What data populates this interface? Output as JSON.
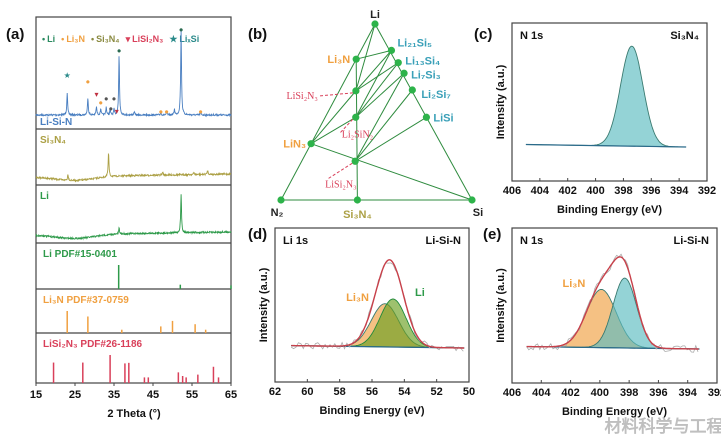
{
  "colors": {
    "li_si_n": "#4a7fc1",
    "si3n4": "#aca045",
    "li": "#2e9a4a",
    "li3n": "#f0a040",
    "lisi2n3": "#d9405a",
    "lisi_phase": "#3aa0b8",
    "tie_line": "#2e8b3e",
    "node": "#2db34a",
    "xps_teal": "#5bbcc0",
    "xps_envelope": "#c8404a",
    "xps_green": "#6aa020"
  },
  "chart_data": [
    {
      "panel": "(a)",
      "type": "line",
      "xlabel": "2 Theta (°)",
      "xlim": [
        15,
        65
      ],
      "xticks": [
        "15",
        "25",
        "35",
        "45",
        "55",
        "65"
      ],
      "legend": [
        {
          "symbol": "•",
          "label": "Li",
          "color": "#2a8a60"
        },
        {
          "symbol": "•",
          "label": "Li₃N",
          "color": "#f0a040"
        },
        {
          "symbol": "•",
          "label": "Si₃N₄",
          "color": "#8a8a40"
        },
        {
          "symbol": "▾",
          "label": "LiSi₂N₃",
          "color": "#d9405a"
        },
        {
          "symbol": "★",
          "label": "LiₓSi",
          "color": "#2a8a8a"
        }
      ],
      "experimental": [
        {
          "name": "Li-Si-N",
          "peaks": [
            [
              23.0,
              28
            ],
            [
              28.3,
              22
            ],
            [
              30.5,
              10
            ],
            [
              31.6,
              8
            ],
            [
              33.0,
              10
            ],
            [
              34.0,
              6
            ],
            [
              35.0,
              7
            ],
            [
              36.3,
              75
            ],
            [
              40.2,
              4
            ],
            [
              47.0,
              3
            ],
            [
              48.5,
              3
            ],
            [
              50.5,
              7
            ],
            [
              52.2,
              105
            ],
            [
              57.2,
              3
            ]
          ]
        },
        {
          "name": "Si₃N₄",
          "peaks": [
            [
              23.2,
              6
            ],
            [
              33.6,
              24
            ],
            [
              47.5,
              3
            ],
            [
              55.5,
              2
            ],
            [
              59.0,
              4
            ]
          ]
        },
        {
          "name": "Li",
          "peaks": [
            [
              36.3,
              5
            ],
            [
              52.2,
              32
            ]
          ]
        }
      ],
      "markers": [
        {
          "symbol": "★",
          "phase": "LiₓSi",
          "x": 23.0
        },
        {
          "symbol": "•",
          "phase": "Li₃N",
          "x": 28.3
        },
        {
          "symbol": "▾",
          "phase": "LiSi₂N₃",
          "x": 30.5
        },
        {
          "symbol": "•",
          "phase": "Li₃N",
          "x": 31.6
        },
        {
          "symbol": "•",
          "phase": "Si₃N₄",
          "x": 33.0
        },
        {
          "symbol": "•",
          "phase": "Si₃N₄",
          "x": 34.2
        },
        {
          "symbol": "•",
          "phase": "Si₃N₄",
          "x": 35.0
        },
        {
          "symbol": "▾",
          "phase": "LiSi₂N₃",
          "x": 35.7
        },
        {
          "symbol": "•",
          "phase": "Li",
          "x": 36.3
        },
        {
          "symbol": "•",
          "phase": "Li₃N",
          "x": 47.0
        },
        {
          "symbol": "•",
          "phase": "Li₃N",
          "x": 48.5
        },
        {
          "symbol": "•",
          "phase": "Li",
          "x": 52.2
        },
        {
          "symbol": "•",
          "phase": "Li₃N",
          "x": 57.2
        }
      ],
      "references": [
        {
          "name": "Li  PDF#15-0401",
          "peaks": [
            [
              36.2,
              100
            ],
            [
              52.0,
              18
            ],
            [
              65.0,
              15
            ]
          ]
        },
        {
          "name": "Li₃N  PDF#37-0759",
          "peaks": [
            [
              23.0,
              100
            ],
            [
              28.3,
              75
            ],
            [
              37.0,
              15
            ],
            [
              47.0,
              30
            ],
            [
              50.0,
              55
            ],
            [
              55.8,
              40
            ],
            [
              58.5,
              15
            ]
          ]
        },
        {
          "name": "LiSi₂N₃  PDF#26-1186",
          "peaks": [
            [
              19.5,
              73
            ],
            [
              27.0,
              73
            ],
            [
              34.0,
              100
            ],
            [
              37.8,
              70
            ],
            [
              38.8,
              72
            ],
            [
              42.8,
              20
            ],
            [
              43.8,
              20
            ],
            [
              51.5,
              38
            ],
            [
              52.6,
              25
            ],
            [
              53.5,
              20
            ],
            [
              56.5,
              30
            ],
            [
              60.5,
              58
            ],
            [
              61.8,
              20
            ]
          ]
        }
      ]
    },
    {
      "panel": "(b)",
      "type": "ternary",
      "vertices": {
        "top": "Li",
        "left": "N₂",
        "right": "Si"
      },
      "points": [
        {
          "id": "Li",
          "label": "Li",
          "li": 1.0,
          "si": 0.0,
          "color": "#222"
        },
        {
          "id": "N2",
          "label": "N₂",
          "li": 0.0,
          "si": 0.0,
          "color": "#222"
        },
        {
          "id": "Si",
          "label": "Si",
          "li": 0.0,
          "si": 1.0,
          "color": "#222"
        },
        {
          "id": "Li3N",
          "label": "Li₃N",
          "li": 0.8,
          "si": 0.0,
          "color": "#f0a040"
        },
        {
          "id": "LiSi2N3a",
          "label": "LiSi₂N₃",
          "li": 0.62,
          "si": 0.087,
          "color": "#d9405a"
        },
        {
          "id": "Li2SiN2",
          "label": "Li₂SiN₂",
          "li": 0.47,
          "si": 0.16,
          "color": "#d9405a"
        },
        {
          "id": "LiN3",
          "label": "LiN₃",
          "li": 0.32,
          "si": 0.0,
          "color": "#f0a040"
        },
        {
          "id": "LiSi2N3b",
          "label": "LiSi₂N₃",
          "li": 0.22,
          "si": 0.28,
          "color": "#d9405a"
        },
        {
          "id": "Si3N4",
          "label": "Si₃N₄",
          "li": 0.0,
          "si": 0.4,
          "color": "#aca045"
        },
        {
          "id": "Li21Si5",
          "label": "Li₂₁Si₅",
          "li": 0.85,
          "si": 0.16,
          "color": "#3aa0b8"
        },
        {
          "id": "Li13Si4",
          "label": "Li₁₃Si₄",
          "li": 0.78,
          "si": 0.23,
          "color": "#3aa0b8"
        },
        {
          "id": "Li7Si3",
          "label": "Li₇Si₃",
          "li": 0.72,
          "si": 0.29,
          "color": "#3aa0b8"
        },
        {
          "id": "Li2Si7",
          "label": "Li₂Si₇",
          "li": 0.625,
          "si": 0.38,
          "color": "#3aa0b8"
        },
        {
          "id": "LiSi",
          "label": "LiSi",
          "li": 0.47,
          "si": 0.53,
          "color": "#3aa0b8"
        }
      ],
      "tie_lines": [
        [
          "Li",
          "N2"
        ],
        [
          "N2",
          "Si"
        ],
        [
          "Si",
          "Li"
        ],
        [
          "Li3N",
          "Si3N4"
        ],
        [
          "Li",
          "LiSi2N3a"
        ],
        [
          "Li3N",
          "Li21Si5"
        ],
        [
          "LiSi2N3a",
          "Li21Si5"
        ],
        [
          "LiSi2N3a",
          "Li13Si4"
        ],
        [
          "Li2SiN2",
          "Li21Si5"
        ],
        [
          "Li2SiN2",
          "Li13Si4"
        ],
        [
          "Li2SiN2",
          "Li7Si3"
        ],
        [
          "LiSi2N3b",
          "Li7Si3"
        ],
        [
          "LiSi2N3b",
          "Li2Si7"
        ],
        [
          "LiSi2N3b",
          "LiSi"
        ],
        [
          "LiN3",
          "LiSi2N3a"
        ],
        [
          "LiN3",
          "Li2SiN2"
        ],
        [
          "LiN3",
          "Si"
        ]
      ]
    },
    {
      "panel": "(c)",
      "type": "line",
      "title": "N 1s",
      "sample": "Si₃N₄",
      "xlabel": "Binding Energy (eV)",
      "ylabel": "Intensity (a.u.)",
      "xlim": [
        406,
        392
      ],
      "xticks": [
        "406",
        "404",
        "402",
        "400",
        "398",
        "396",
        "394",
        "392"
      ],
      "data_range": [
        405,
        393.5
      ],
      "components": [
        {
          "center": 397.4,
          "fwhm": 1.9,
          "height": 100,
          "fill": "#5bbcc0"
        }
      ]
    },
    {
      "panel": "(d)",
      "type": "line",
      "title": "Li 1s",
      "sample": "Li-Si-N",
      "xlabel": "Binding Energy (eV)",
      "ylabel": "Intensity (a.u.)",
      "xlim": [
        62,
        50
      ],
      "xticks": [
        "62",
        "60",
        "58",
        "56",
        "54",
        "52",
        "50"
      ],
      "data_range": [
        61,
        50.3
      ],
      "components": [
        {
          "name": "Li₃N",
          "center": 55.2,
          "fwhm": 2.0,
          "height": 45,
          "fill": "#f0a040"
        },
        {
          "name": "Li",
          "center": 54.7,
          "fwhm": 1.9,
          "height": 50,
          "fill": "#6aa020"
        }
      ]
    },
    {
      "panel": "(e)",
      "type": "line",
      "title": "N 1s",
      "sample": "Li-Si-N",
      "xlabel": "Binding Energy (eV)",
      "ylabel": "Intensity (a.u.)",
      "xlim": [
        406,
        392
      ],
      "xticks": [
        "406",
        "404",
        "402",
        "400",
        "398",
        "396",
        "394",
        "392"
      ],
      "data_range": [
        405,
        393.2
      ],
      "components": [
        {
          "name": "Li₃N",
          "center": 399.9,
          "fwhm": 2.4,
          "height": 60,
          "fill": "#f0a040"
        },
        {
          "name": "",
          "center": 398.3,
          "fwhm": 1.9,
          "height": 72,
          "fill": "#5bbcc0"
        }
      ]
    }
  ],
  "panel_labels": {
    "a": "(a)",
    "b": "(b)",
    "c": "(c)",
    "d": "(d)",
    "e": "(e)"
  },
  "watermark": "材料科学与工程"
}
